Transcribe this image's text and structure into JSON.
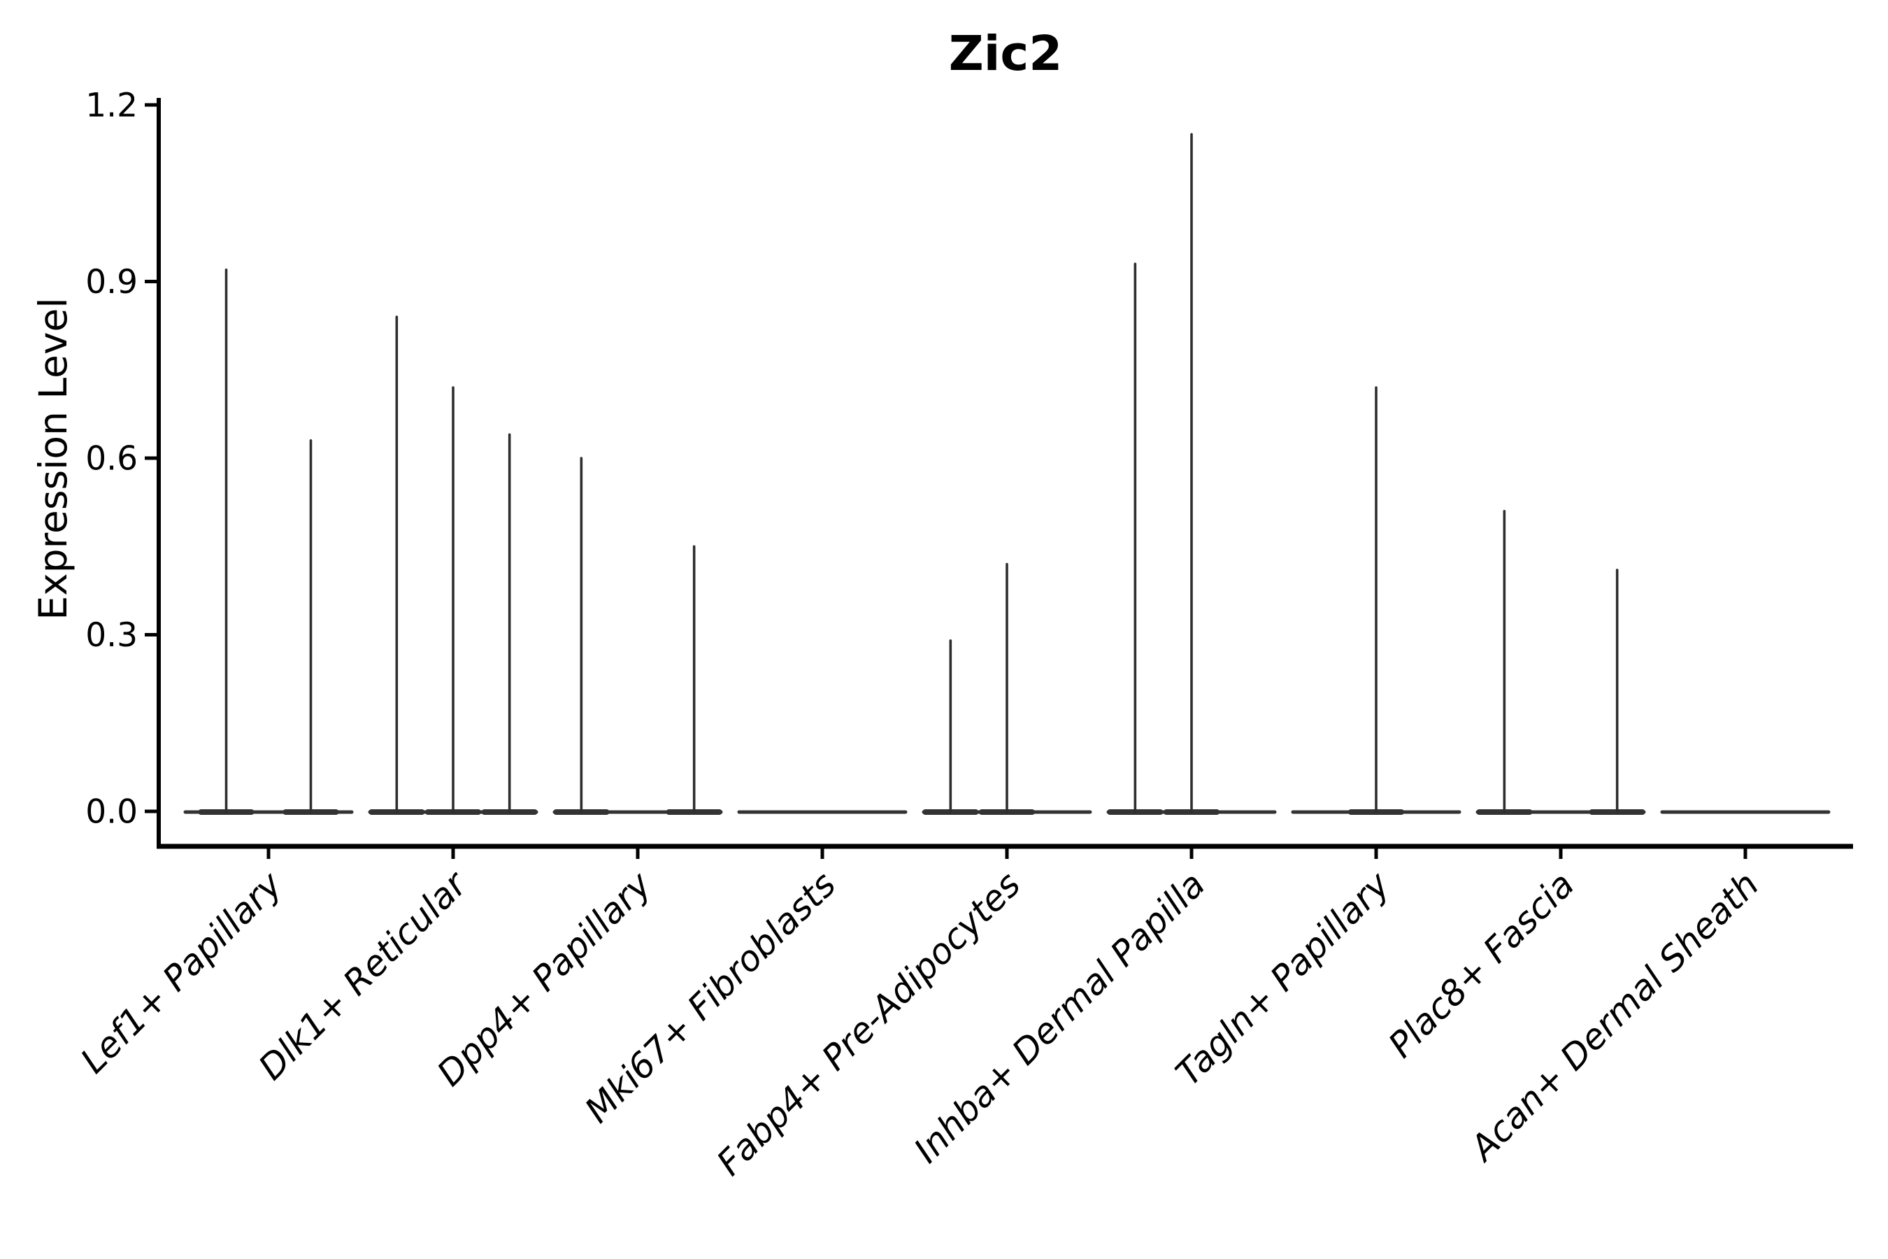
{
  "chart_data": {
    "type": "violin",
    "title": "Zic2",
    "ylabel": "Expression Level",
    "xlabel": "",
    "ylim": [
      0,
      1.2
    ],
    "yticks": [
      0,
      0.3,
      0.6,
      0.9,
      1.2
    ],
    "ytick_labels": [
      "0.0",
      "0.3",
      "0.6",
      "0.9",
      "1.2"
    ],
    "categories": [
      "Lef1+ Papillary",
      "Dlk1+ Reticular",
      "Dpp4+ Papillary",
      "Mki67+ Fibroblasts",
      "Fabp4+ Pre-Adipocytes",
      "Inhba+ Dermal Papilla",
      "Tagln+ Papillary",
      "Plac8+ Fascia",
      "Acan+ Dermal Sheath"
    ],
    "groups": [
      {
        "category": "Lef1+ Papillary",
        "violin_max_values": [
          0.92,
          0.63
        ]
      },
      {
        "category": "Dlk1+ Reticular",
        "violin_max_values": [
          0.84,
          0.72,
          0.64
        ]
      },
      {
        "category": "Dpp4+ Papillary",
        "violin_max_values": [
          0.6,
          0,
          0.45
        ]
      },
      {
        "category": "Mki67+ Fibroblasts",
        "violin_max_values": [
          0,
          0,
          0
        ]
      },
      {
        "category": "Fabp4+ Pre-Adipocytes",
        "violin_max_values": [
          0.29,
          0.42,
          0
        ]
      },
      {
        "category": "Inhba+ Dermal Papilla",
        "violin_max_values": [
          0.93,
          1.15,
          0
        ]
      },
      {
        "category": "Tagln+ Papillary",
        "violin_max_values": [
          0,
          0.72,
          0
        ]
      },
      {
        "category": "Plac8+ Fascia",
        "violin_max_values": [
          0.51,
          0,
          0.41
        ]
      },
      {
        "category": "Acan+ Dermal Sheath",
        "violin_max_values": [
          0,
          0,
          0
        ]
      }
    ],
    "legend": "none",
    "grid": false,
    "colors": {
      "background": "#ffffff",
      "axis": "#000000",
      "text": "#000000",
      "violin_base": "#333333",
      "violin_spike": "#2e2e2e"
    }
  }
}
